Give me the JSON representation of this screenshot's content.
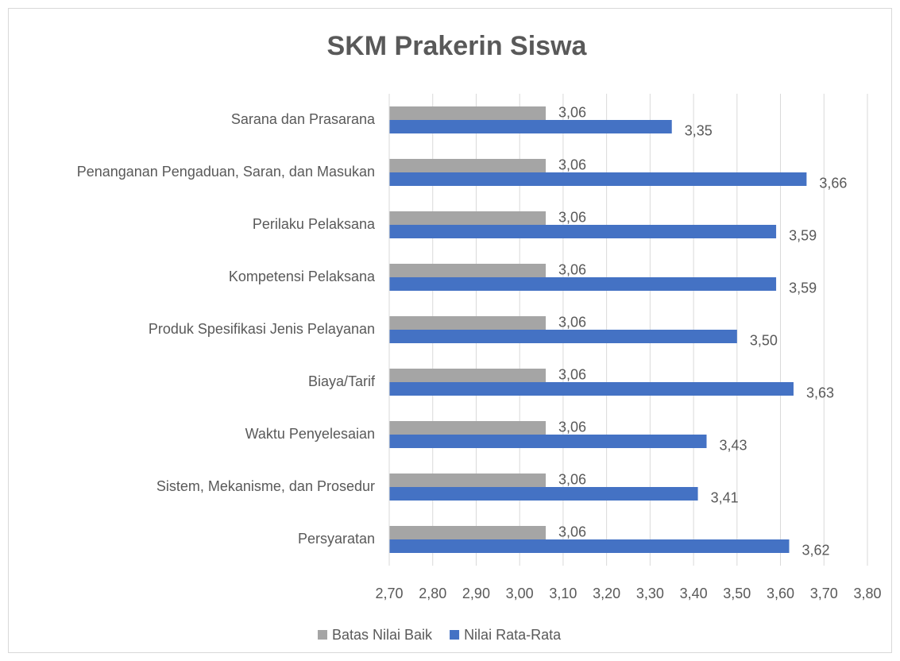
{
  "chart_data": {
    "type": "bar",
    "orientation": "horizontal",
    "title": "SKM Prakerin Siswa",
    "categories": [
      "Sarana dan Prasarana",
      "Penanganan Pengaduan, Saran, dan Masukan",
      "Perilaku Pelaksana",
      "Kompetensi Pelaksana",
      "Produk Spesifikasi Jenis Pelayanan",
      "Biaya/Tarif",
      "Waktu Penyelesaian",
      "Sistem, Mekanisme, dan Prosedur",
      "Persyaratan"
    ],
    "series": [
      {
        "name": "Batas Nilai Baik",
        "color": "#a5a5a5",
        "values": [
          3.06,
          3.06,
          3.06,
          3.06,
          3.06,
          3.06,
          3.06,
          3.06,
          3.06
        ],
        "value_labels": [
          "3,06",
          "3,06",
          "3,06",
          "3,06",
          "3,06",
          "3,06",
          "3,06",
          "3,06",
          "3,06"
        ]
      },
      {
        "name": "Nilai Rata-Rata",
        "color": "#4472c4",
        "values": [
          3.35,
          3.66,
          3.59,
          3.59,
          3.5,
          3.63,
          3.43,
          3.41,
          3.62
        ],
        "value_labels": [
          "3,35",
          "3,66",
          "3,59",
          "3,59",
          "3,50",
          "3,63",
          "3,43",
          "3,41",
          "3,62"
        ]
      }
    ],
    "xlim": [
      2.7,
      3.8
    ],
    "xticks": [
      {
        "value": 2.7,
        "label": "2,70"
      },
      {
        "value": 2.8,
        "label": "2,80"
      },
      {
        "value": 2.9,
        "label": "2,90"
      },
      {
        "value": 3.0,
        "label": "3,00"
      },
      {
        "value": 3.1,
        "label": "3,10"
      },
      {
        "value": 3.2,
        "label": "3,20"
      },
      {
        "value": 3.3,
        "label": "3,30"
      },
      {
        "value": 3.4,
        "label": "3,40"
      },
      {
        "value": 3.5,
        "label": "3,50"
      },
      {
        "value": 3.6,
        "label": "3,60"
      },
      {
        "value": 3.7,
        "label": "3,70"
      },
      {
        "value": 3.8,
        "label": "3,80"
      }
    ],
    "grid": true,
    "legend": "bottom"
  }
}
